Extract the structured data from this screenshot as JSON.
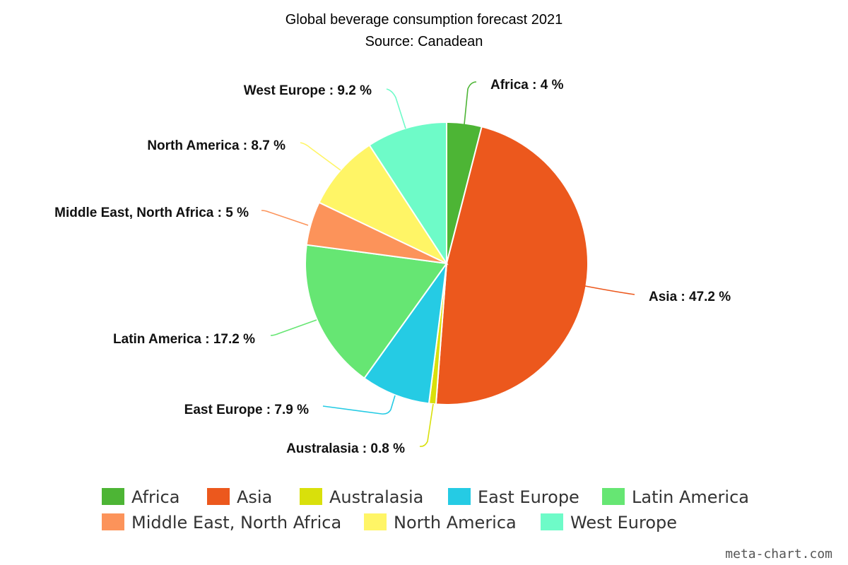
{
  "chart_data": {
    "type": "pie",
    "title": "Global beverage consumption forecast 2021",
    "subtitle": "Source: Canadean",
    "categories": [
      "Africa",
      "Asia",
      "Australasia",
      "East Europe",
      "Latin America",
      "Middle East, North Africa",
      "North America",
      "West Europe"
    ],
    "values": [
      4,
      47.2,
      0.8,
      7.9,
      17.2,
      5,
      8.7,
      9.2
    ],
    "labels": [
      "Africa : 4 %",
      "Asia : 47.2 %",
      "Australasia : 0.8 %",
      "East Europe : 7.9 %",
      "Latin America : 17.2 %",
      "Middle East, North Africa : 5 %",
      "North America : 8.7 %",
      "West Europe : 9.2 %"
    ],
    "colors": [
      "#4db535",
      "#ec581d",
      "#d9e00b",
      "#25cbe4",
      "#66e673",
      "#fc935a",
      "#fff566",
      "#6efbc8"
    ],
    "legend_placement": "bottom"
  },
  "watermark": "meta-chart.com"
}
